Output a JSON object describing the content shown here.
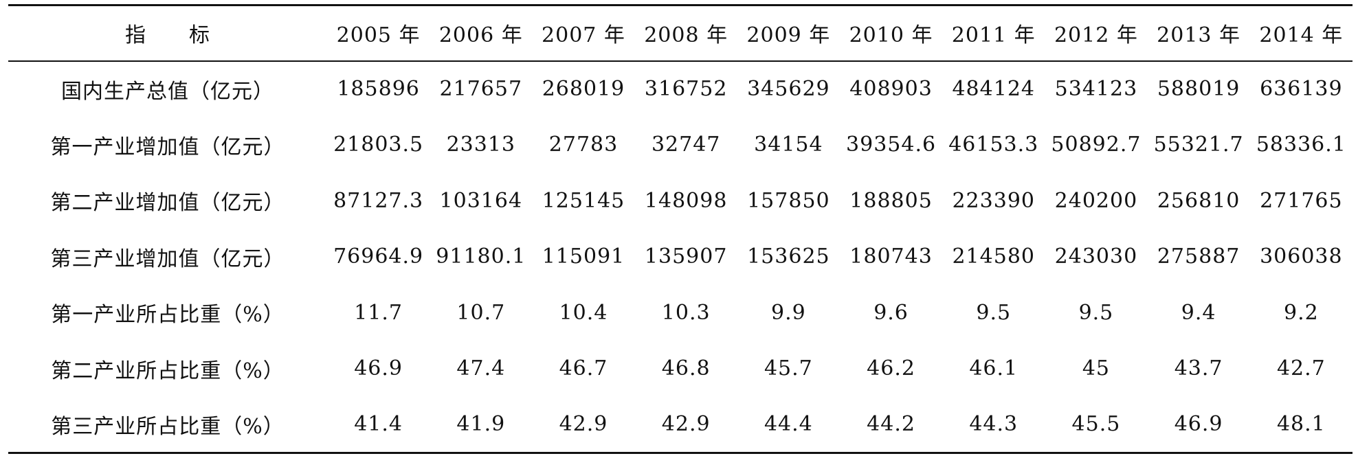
{
  "table": {
    "header": {
      "label": "指　　标",
      "years": [
        "2005 年",
        "2006 年",
        "2007 年",
        "2008 年",
        "2009 年",
        "2010 年",
        "2011 年",
        "2012 年",
        "2013 年",
        "2014 年"
      ]
    },
    "rows": [
      {
        "label": "国内生产总值（亿元）",
        "values": [
          "185896",
          "217657",
          "268019",
          "316752",
          "345629",
          "408903",
          "484124",
          "534123",
          "588019",
          "636139"
        ]
      },
      {
        "label": "第一产业增加值（亿元）",
        "values": [
          "21803.5",
          "23313",
          "27783",
          "32747",
          "34154",
          "39354.6",
          "46153.3",
          "50892.7",
          "55321.7",
          "58336.1"
        ]
      },
      {
        "label": "第二产业增加值（亿元）",
        "values": [
          "87127.3",
          "103164",
          "125145",
          "148098",
          "157850",
          "188805",
          "223390",
          "240200",
          "256810",
          "271765"
        ]
      },
      {
        "label": "第三产业增加值（亿元）",
        "values": [
          "76964.9",
          "91180.1",
          "115091",
          "135907",
          "153625",
          "180743",
          "214580",
          "243030",
          "275887",
          "306038"
        ]
      },
      {
        "label": "第一产业所占比重（%）",
        "values": [
          "11.7",
          "10.7",
          "10.4",
          "10.3",
          "9.9",
          "9.6",
          "9.5",
          "9.5",
          "9.4",
          "9.2"
        ]
      },
      {
        "label": "第二产业所占比重（%）",
        "values": [
          "46.9",
          "47.4",
          "46.7",
          "46.8",
          "45.7",
          "46.2",
          "46.1",
          "45",
          "43.7",
          "42.7"
        ]
      },
      {
        "label": "第三产业所占比重（%）",
        "values": [
          "41.4",
          "41.9",
          "42.9",
          "42.9",
          "44.4",
          "44.2",
          "44.3",
          "45.5",
          "46.9",
          "48.1"
        ]
      }
    ]
  }
}
